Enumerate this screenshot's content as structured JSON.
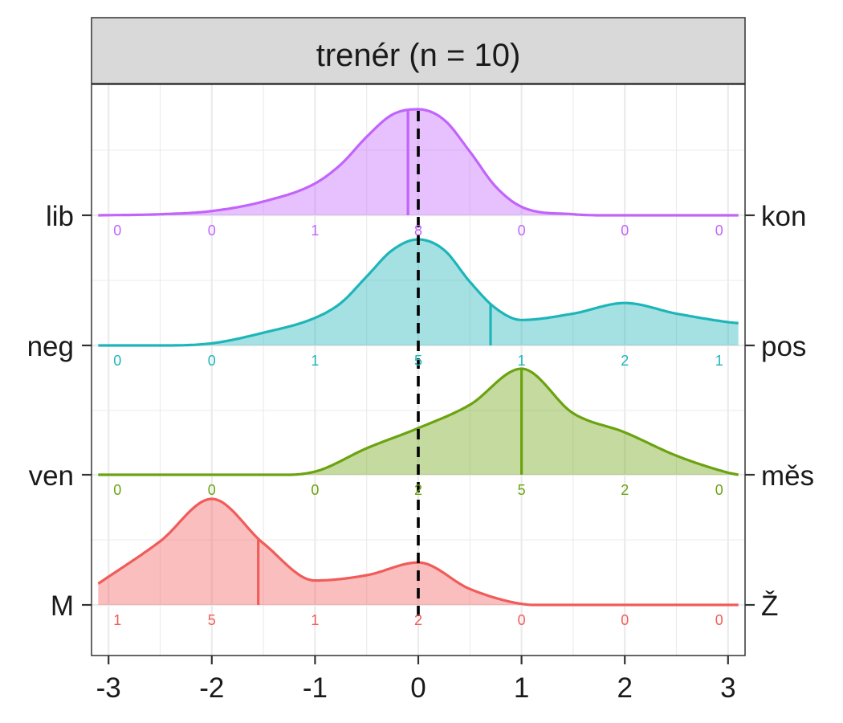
{
  "chart_data": {
    "type": "ridgeline",
    "title": "trenér (n = 10)",
    "xlim": [
      -3.1,
      3.1
    ],
    "x_ticks": [
      -3,
      -2,
      -1,
      0,
      1,
      2,
      3
    ],
    "x_tick_labels": [
      "-3",
      "-2",
      "-1",
      "0",
      "1",
      "2",
      "3"
    ],
    "grid": true,
    "reference_line": {
      "x": 0,
      "style": "dashed",
      "color": "#000000"
    },
    "rows": [
      {
        "left_label": "lib",
        "right_label": "kon",
        "color": "#C264FC",
        "counts_x": [
          -3,
          -2,
          -1,
          0,
          1,
          2,
          3
        ],
        "counts": [
          "0",
          "0",
          "1",
          "8",
          "0",
          "0",
          "0"
        ],
        "mean": -0.1,
        "density_x": [
          -3.1,
          -2.5,
          -2.0,
          -1.5,
          -1.0,
          -0.75,
          -0.5,
          -0.25,
          0.0,
          0.25,
          0.5,
          0.75,
          1.0,
          1.5,
          2.0,
          3.1
        ],
        "density_y": [
          0,
          0.01,
          0.04,
          0.13,
          0.3,
          0.48,
          0.74,
          0.95,
          1.0,
          0.9,
          0.6,
          0.27,
          0.08,
          0.01,
          0,
          0
        ]
      },
      {
        "left_label": "neg",
        "right_label": "pos",
        "color": "#1EB5B9",
        "counts_x": [
          -3,
          -2,
          -1,
          0,
          1,
          2,
          3
        ],
        "counts": [
          "0",
          "0",
          "1",
          "5",
          "1",
          "2",
          "1"
        ],
        "mean": 0.7,
        "density_x": [
          -3.1,
          -2.5,
          -2.0,
          -1.5,
          -1.0,
          -0.75,
          -0.5,
          -0.25,
          0.0,
          0.25,
          0.5,
          0.75,
          1.0,
          1.5,
          2.0,
          2.5,
          3.0,
          3.1
        ],
        "density_y": [
          0,
          0,
          0.02,
          0.12,
          0.26,
          0.4,
          0.65,
          0.9,
          1.0,
          0.9,
          0.6,
          0.35,
          0.24,
          0.3,
          0.4,
          0.3,
          0.22,
          0.21
        ]
      },
      {
        "left_label": "ven",
        "right_label": "měs",
        "color": "#6BA310",
        "counts_x": [
          -3,
          -2,
          -1,
          0,
          1,
          2,
          3
        ],
        "counts": [
          "0",
          "0",
          "0",
          "2",
          "5",
          "2",
          "0"
        ],
        "mean": 1.0,
        "density_x": [
          -3.1,
          -2.0,
          -1.5,
          -1.0,
          -0.5,
          0.0,
          0.5,
          1.0,
          1.5,
          2.0,
          2.5,
          3.0,
          3.1
        ],
        "density_y": [
          0,
          0,
          0,
          0.03,
          0.25,
          0.44,
          0.66,
          1.0,
          0.58,
          0.4,
          0.18,
          0.02,
          0
        ]
      },
      {
        "left_label": "M",
        "right_label": "Ž",
        "color": "#F05C5A",
        "counts_x": [
          -3,
          -2,
          -1,
          0,
          1,
          2,
          3
        ],
        "counts": [
          "1",
          "5",
          "1",
          "2",
          "0",
          "0",
          "0"
        ],
        "mean": -1.55,
        "density_x": [
          -3.1,
          -2.5,
          -2.0,
          -1.5,
          -1.0,
          -0.5,
          0.0,
          0.5,
          1.0,
          1.5,
          3.1
        ],
        "density_y": [
          0.2,
          0.6,
          1.0,
          0.58,
          0.23,
          0.28,
          0.4,
          0.15,
          0.01,
          0,
          0
        ]
      }
    ]
  }
}
